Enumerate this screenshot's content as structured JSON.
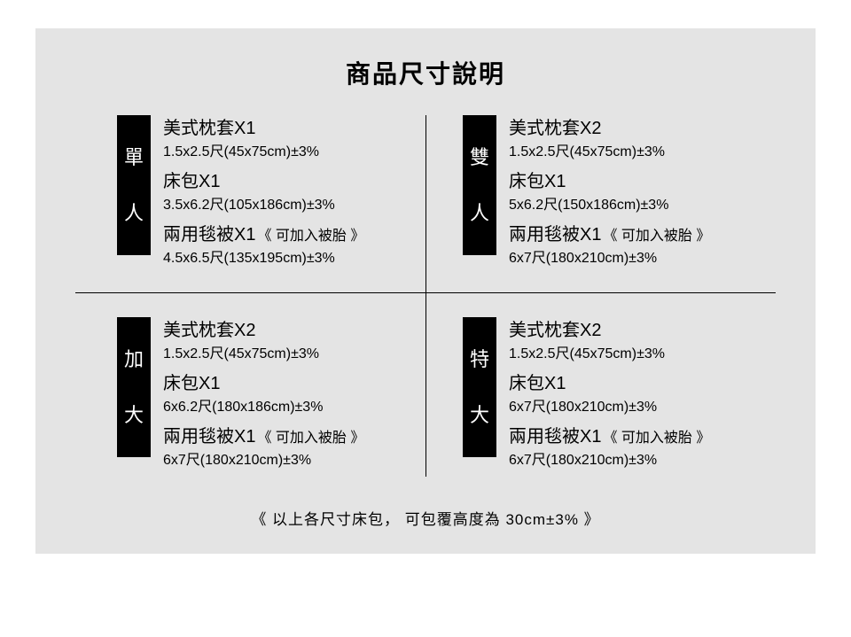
{
  "title": "商品尺寸說明",
  "footer": "《 以上各尺寸床包， 可包覆高度為 30cm±3% 》",
  "colors": {
    "background": "#e4e4e4",
    "label_bg": "#000000",
    "label_text": "#ffffff",
    "text": "#000000"
  },
  "cells": [
    {
      "label_c1": "單",
      "label_c2": "人",
      "items": [
        {
          "title": "美式枕套X1",
          "note": "",
          "dim": "1.5x2.5尺(45x75cm)±3%"
        },
        {
          "title": "床包X1",
          "note": "",
          "dim": "3.5x6.2尺(105x186cm)±3%"
        },
        {
          "title": "兩用毯被X1",
          "note": "《 可加入被胎 》",
          "dim": "4.5x6.5尺(135x195cm)±3%"
        }
      ]
    },
    {
      "label_c1": "雙",
      "label_c2": "人",
      "items": [
        {
          "title": "美式枕套X2",
          "note": "",
          "dim": "1.5x2.5尺(45x75cm)±3%"
        },
        {
          "title": "床包X1",
          "note": "",
          "dim": "5x6.2尺(150x186cm)±3%"
        },
        {
          "title": "兩用毯被X1",
          "note": "《 可加入被胎 》",
          "dim": "6x7尺(180x210cm)±3%"
        }
      ]
    },
    {
      "label_c1": "加",
      "label_c2": "大",
      "items": [
        {
          "title": "美式枕套X2",
          "note": "",
          "dim": "1.5x2.5尺(45x75cm)±3%"
        },
        {
          "title": "床包X1",
          "note": "",
          "dim": "6x6.2尺(180x186cm)±3%"
        },
        {
          "title": "兩用毯被X1",
          "note": "《 可加入被胎 》",
          "dim": "6x7尺(180x210cm)±3%"
        }
      ]
    },
    {
      "label_c1": "特",
      "label_c2": "大",
      "items": [
        {
          "title": "美式枕套X2",
          "note": "",
          "dim": "1.5x2.5尺(45x75cm)±3%"
        },
        {
          "title": "床包X1",
          "note": "",
          "dim": "6x7尺(180x210cm)±3%"
        },
        {
          "title": "兩用毯被X1",
          "note": "《 可加入被胎 》",
          "dim": "6x7尺(180x210cm)±3%"
        }
      ]
    }
  ]
}
